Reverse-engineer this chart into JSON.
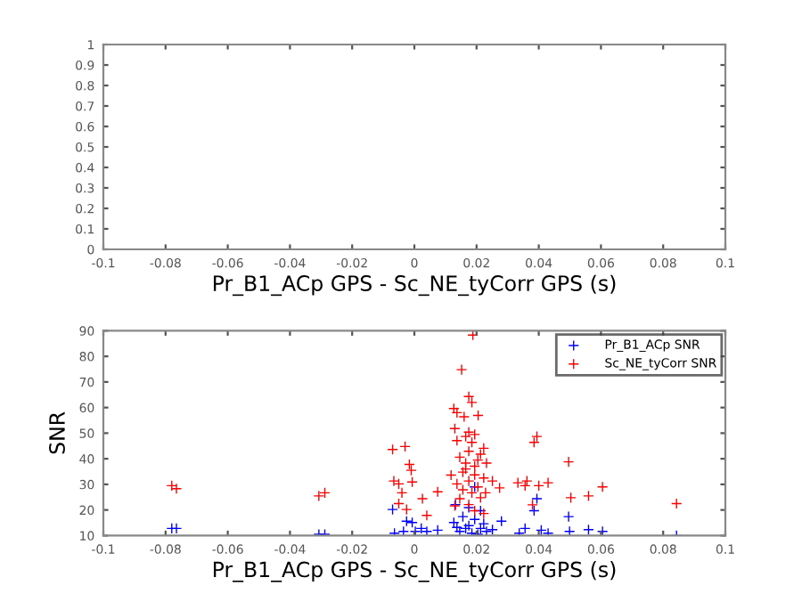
{
  "chart_data": [
    {
      "type": "scatter",
      "xlabel": "Pr_B1_ACp GPS - Sc_NE_tyCorr GPS (s)",
      "xlim": [
        -0.1,
        0.1
      ],
      "ylim": [
        0,
        1
      ],
      "xticks": [
        -0.1,
        -0.08,
        -0.06,
        -0.04,
        -0.02,
        0,
        0.02,
        0.04,
        0.06,
        0.08,
        0.1
      ],
      "yticks": [
        0,
        0.1,
        0.2,
        0.3,
        0.4,
        0.5,
        0.6,
        0.7,
        0.8,
        0.9,
        1
      ],
      "grid": false,
      "legend": false
    },
    {
      "type": "scatter",
      "xlabel": "Pr_B1_ACp GPS - Sc_NE_tyCorr GPS (s)",
      "ylabel": "SNR",
      "xlim": [
        -0.1,
        0.1
      ],
      "ylim": [
        10,
        90
      ],
      "xticks": [
        -0.1,
        -0.08,
        -0.06,
        -0.04,
        -0.02,
        0,
        0.02,
        0.04,
        0.06,
        0.08,
        0.1
      ],
      "yticks": [
        10,
        20,
        30,
        40,
        50,
        60,
        70,
        80,
        90
      ],
      "grid": false,
      "legend": "top right",
      "marker": "cross",
      "series": [
        {
          "name": "Pr_B1_ACp SNR",
          "color": "#0000ff",
          "x": [
            -0.078,
            -0.0765,
            -0.0307,
            -0.0288,
            -0.007,
            -0.0064,
            -0.0035,
            -0.0025,
            -0.0007,
            0.0003,
            0.0022,
            0.004,
            0.0075,
            0.0132,
            0.0127,
            0.0156,
            0.0175,
            0.0194,
            0.0213,
            0.0146,
            0.0185,
            0.0204,
            0.0232,
            0.0165,
            0.0137,
            0.0223,
            0.0251,
            0.028,
            0.0194,
            0.0175,
            0.0213,
            0.0337,
            0.0356,
            0.0385,
            0.0394,
            0.0408,
            0.043,
            0.0499,
            0.0496,
            0.056,
            0.0605,
            0.0843
          ],
          "values": [
            12.8,
            12.8,
            10.5,
            10.5,
            20.2,
            10.9,
            11.6,
            15.6,
            15.1,
            11.6,
            12.8,
            11.6,
            12.1,
            22.1,
            15.1,
            17.4,
            13.9,
            16.3,
            12.8,
            11.6,
            10.9,
            10.5,
            11.6,
            12.8,
            13.2,
            14.6,
            12.3,
            15.6,
            29,
            20.9,
            19.7,
            10.9,
            12.8,
            19.7,
            24.4,
            12.1,
            10.9,
            11.6,
            17.4,
            12.3,
            11.6,
            10
          ]
        },
        {
          "name": "Sc_NE_tyCorr SNR",
          "color": "#ff0000",
          "x": [
            -0.078,
            -0.0765,
            -0.0307,
            -0.0288,
            -0.007,
            -0.003,
            -0.0066,
            -0.005,
            -0.004,
            -0.005,
            -0.0025,
            -0.0016,
            -0.001,
            -0.0007,
            0.0026,
            0.004,
            0.0075,
            0.013,
            0.0118,
            0.0188,
            0.0152,
            0.0175,
            0.0185,
            0.0127,
            0.0137,
            0.016,
            0.0205,
            0.013,
            0.0175,
            0.0165,
            0.0137,
            0.0194,
            0.0223,
            0.0175,
            0.0146,
            0.0204,
            0.0165,
            0.0232,
            0.0156,
            0.0194,
            0.0223,
            0.0175,
            0.0137,
            0.0204,
            0.0156,
            0.0185,
            0.0229,
            0.0146,
            0.0213,
            0.0175,
            0.0194,
            0.0223,
            0.0165,
            0.0194,
            0.0213,
            0.0251,
            0.0185,
            0.0274,
            0.0333,
            0.0356,
            0.0362,
            0.038,
            0.0385,
            0.0394,
            0.04,
            0.043,
            0.0496,
            0.0503,
            0.056,
            0.0605,
            0.0843
          ],
          "values": [
            29.5,
            28.3,
            25.5,
            26.7,
            43.6,
            44.8,
            31.3,
            30.2,
            26.7,
            22.5,
            20.2,
            37.8,
            35.5,
            30.9,
            24.4,
            17.9,
            27.1,
            21.6,
            33.6,
            88.3,
            74.8,
            64.3,
            62,
            59.6,
            58,
            56.4,
            56.9,
            51.8,
            50.4,
            48.7,
            47.1,
            49.5,
            44.1,
            42.9,
            40.6,
            39.5,
            38.3,
            38.3,
            34.8,
            33.7,
            32.5,
            31.3,
            30.2,
            29,
            27.9,
            26.7,
            26.7,
            24.4,
            24.8,
            22.1,
            19.7,
            18.6,
            36,
            37.1,
            41.8,
            31.3,
            46.4,
            28.6,
            30.6,
            29.5,
            31.3,
            22,
            46.4,
            48.7,
            29.5,
            30.6,
            38.8,
            24.8,
            25.5,
            29,
            22.5
          ]
        }
      ]
    }
  ]
}
